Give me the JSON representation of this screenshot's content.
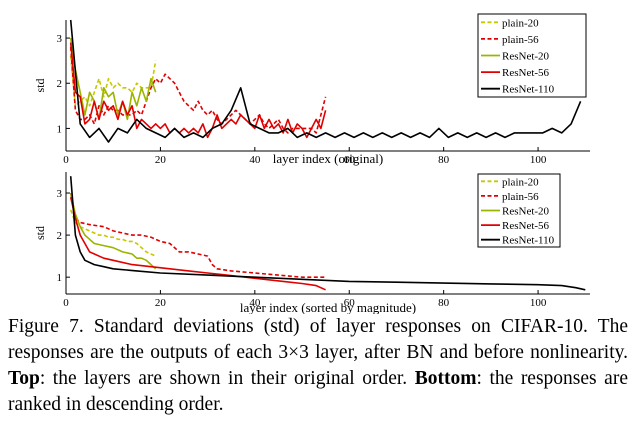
{
  "chart_data": [
    {
      "type": "line",
      "xlabel": "layer index (original)",
      "ylabel": "std",
      "xlim": [
        0,
        111
      ],
      "ylim": [
        0.5,
        3.4
      ],
      "xticks": [
        0,
        20,
        40,
        60,
        80,
        100
      ],
      "yticks": [
        1,
        2,
        3
      ],
      "legend_position": "top-right",
      "series": [
        {
          "name": "plain-20",
          "color": "#c8c800",
          "dash": "dashed",
          "x": [
            1,
            2,
            3,
            4,
            5,
            6,
            7,
            8,
            9,
            10,
            11,
            12,
            13,
            14,
            15,
            16,
            17,
            18,
            19
          ],
          "values": [
            2.6,
            1.5,
            1.6,
            1.7,
            1.5,
            1.8,
            2.1,
            1.7,
            2.1,
            1.9,
            2.0,
            1.9,
            1.9,
            1.8,
            2.0,
            1.9,
            1.9,
            1.9,
            2.5
          ]
        },
        {
          "name": "plain-56",
          "color": "#e00000",
          "dash": "dashed",
          "x": [
            1,
            2,
            3,
            4,
            5,
            6,
            7,
            8,
            9,
            10,
            11,
            12,
            13,
            14,
            15,
            16,
            17,
            18,
            19,
            20,
            21,
            22,
            23,
            24,
            25,
            26,
            27,
            28,
            29,
            30,
            31,
            32,
            33,
            34,
            35,
            36,
            37,
            38,
            39,
            40,
            41,
            42,
            43,
            44,
            45,
            46,
            47,
            48,
            49,
            50,
            51,
            52,
            53,
            54,
            55
          ],
          "values": [
            2.8,
            1.4,
            1.2,
            1.2,
            1.3,
            1.1,
            1.5,
            1.3,
            1.5,
            1.4,
            1.4,
            1.3,
            1.3,
            1.3,
            1.4,
            1.3,
            1.6,
            1.9,
            2.1,
            2.0,
            2.2,
            2.1,
            2.0,
            1.8,
            1.6,
            1.5,
            1.4,
            1.6,
            1.4,
            1.3,
            1.4,
            1.2,
            1.1,
            1.2,
            1.3,
            1.4,
            1.3,
            1.2,
            1.1,
            1.2,
            1.3,
            1.1,
            1.0,
            1.1,
            1.2,
            1.0,
            0.9,
            1.0,
            1.0,
            1.0,
            1.0,
            1.0,
            0.9,
            1.3,
            1.7
          ]
        },
        {
          "name": "ResNet-20",
          "color": "#9cb400",
          "dash": "solid",
          "x": [
            1,
            2,
            3,
            4,
            5,
            6,
            7,
            8,
            9,
            10,
            11,
            12,
            13,
            14,
            15,
            16,
            17,
            18,
            19
          ],
          "values": [
            3.0,
            2.3,
            1.8,
            1.3,
            1.8,
            1.6,
            1.2,
            1.9,
            1.7,
            1.8,
            1.3,
            1.6,
            1.2,
            1.8,
            1.5,
            1.9,
            1.6,
            2.1,
            1.8
          ]
        },
        {
          "name": "ResNet-56",
          "color": "#e00000",
          "dash": "solid",
          "x": [
            1,
            2,
            3,
            4,
            5,
            6,
            7,
            8,
            9,
            10,
            11,
            12,
            13,
            14,
            15,
            16,
            17,
            18,
            19,
            20,
            21,
            22,
            23,
            24,
            25,
            26,
            27,
            28,
            29,
            30,
            31,
            32,
            33,
            34,
            35,
            36,
            37,
            38,
            39,
            40,
            41,
            42,
            43,
            44,
            45,
            46,
            47,
            48,
            49,
            50,
            51,
            52,
            53,
            54,
            55
          ],
          "values": [
            2.9,
            1.8,
            1.7,
            1.1,
            1.2,
            1.6,
            1.2,
            1.6,
            1.4,
            1.5,
            1.2,
            1.6,
            1.3,
            1.5,
            1.0,
            1.2,
            1.1,
            1.0,
            1.1,
            1.0,
            1.1,
            0.9,
            1.0,
            0.9,
            1.0,
            0.9,
            1.0,
            0.9,
            1.1,
            0.8,
            1.0,
            1.3,
            1.0,
            1.1,
            1.2,
            1.1,
            1.3,
            1.2,
            1.1,
            1.0,
            1.3,
            1.0,
            1.2,
            1.0,
            1.1,
            0.9,
            1.2,
            0.9,
            1.1,
            1.0,
            0.8,
            1.0,
            1.2,
            1.0,
            1.4
          ]
        },
        {
          "name": "ResNet-110",
          "color": "#000000",
          "dash": "solid",
          "x": [
            1,
            3,
            5,
            7,
            9,
            11,
            13,
            15,
            17,
            19,
            21,
            23,
            25,
            27,
            29,
            31,
            33,
            35,
            37,
            39,
            41,
            43,
            45,
            47,
            49,
            51,
            53,
            55,
            57,
            59,
            61,
            63,
            65,
            67,
            69,
            71,
            73,
            75,
            77,
            79,
            81,
            83,
            85,
            87,
            89,
            91,
            93,
            95,
            97,
            99,
            101,
            103,
            105,
            107,
            109
          ],
          "values": [
            3.4,
            1.1,
            0.8,
            1.0,
            0.7,
            1.0,
            0.9,
            1.2,
            1.0,
            0.9,
            0.8,
            1.0,
            0.8,
            0.9,
            0.8,
            1.0,
            1.1,
            1.4,
            1.9,
            1.1,
            1.0,
            0.9,
            0.9,
            1.0,
            0.8,
            0.9,
            0.8,
            0.9,
            0.8,
            0.9,
            0.8,
            0.9,
            0.8,
            0.9,
            0.8,
            0.9,
            0.8,
            0.9,
            0.8,
            1.0,
            0.8,
            0.9,
            0.8,
            0.9,
            0.8,
            0.9,
            0.8,
            0.9,
            0.9,
            0.9,
            0.9,
            1.0,
            0.9,
            1.1,
            1.6
          ]
        }
      ]
    },
    {
      "type": "line",
      "xlabel": "layer index (sorted by magnitude)",
      "ylabel": "std",
      "xlim": [
        0,
        111
      ],
      "ylim": [
        0.6,
        3.5
      ],
      "xticks": [
        0,
        20,
        40,
        60,
        80,
        100
      ],
      "yticks": [
        1,
        2,
        3
      ],
      "legend_position": "top-right",
      "series": [
        {
          "name": "plain-20",
          "color": "#c8c800",
          "dash": "dashed",
          "x": [
            1,
            2,
            3,
            4,
            5,
            6,
            7,
            8,
            9,
            10,
            11,
            12,
            13,
            14,
            15,
            16,
            17,
            18,
            19
          ],
          "values": [
            2.6,
            2.3,
            2.2,
            2.15,
            2.1,
            2.05,
            2.0,
            2.0,
            1.95,
            1.95,
            1.9,
            1.9,
            1.85,
            1.85,
            1.8,
            1.7,
            1.6,
            1.55,
            1.5
          ]
        },
        {
          "name": "plain-56",
          "color": "#e00000",
          "dash": "dashed",
          "x": [
            1,
            2,
            3,
            5,
            8,
            10,
            12,
            14,
            16,
            18,
            20,
            22,
            24,
            26,
            28,
            30,
            31,
            32,
            35,
            40,
            45,
            50,
            55
          ],
          "values": [
            3.0,
            2.4,
            2.3,
            2.25,
            2.2,
            2.1,
            2.05,
            2.0,
            2.0,
            1.95,
            1.85,
            1.8,
            1.6,
            1.6,
            1.55,
            1.5,
            1.3,
            1.2,
            1.15,
            1.1,
            1.05,
            1.0,
            1.0
          ]
        },
        {
          "name": "ResNet-20",
          "color": "#9cb400",
          "dash": "solid",
          "x": [
            1,
            2,
            3,
            4,
            5,
            6,
            8,
            10,
            12,
            14,
            15,
            16,
            17,
            18,
            19
          ],
          "values": [
            3.0,
            2.5,
            2.2,
            2.0,
            1.9,
            1.8,
            1.75,
            1.7,
            1.6,
            1.55,
            1.45,
            1.45,
            1.4,
            1.3,
            1.2
          ]
        },
        {
          "name": "ResNet-56",
          "color": "#e00000",
          "dash": "solid",
          "x": [
            1,
            2,
            3,
            5,
            8,
            10,
            14,
            18,
            22,
            26,
            30,
            34,
            38,
            42,
            46,
            50,
            53,
            55
          ],
          "values": [
            2.9,
            2.4,
            2.0,
            1.6,
            1.45,
            1.4,
            1.3,
            1.25,
            1.2,
            1.15,
            1.1,
            1.05,
            1.0,
            0.95,
            0.9,
            0.85,
            0.8,
            0.7
          ]
        },
        {
          "name": "ResNet-110",
          "color": "#000000",
          "dash": "solid",
          "x": [
            1,
            2,
            3,
            4,
            6,
            8,
            10,
            15,
            20,
            30,
            40,
            50,
            60,
            70,
            80,
            90,
            100,
            105,
            108,
            110
          ],
          "values": [
            3.4,
            2.0,
            1.6,
            1.4,
            1.3,
            1.25,
            1.2,
            1.15,
            1.1,
            1.05,
            1.0,
            0.95,
            0.9,
            0.88,
            0.86,
            0.84,
            0.82,
            0.8,
            0.75,
            0.7
          ]
        }
      ]
    }
  ],
  "caption": {
    "figure_label": "Figure 7.",
    "text_1": " Standard deviations (std) of layer responses on CIFAR-10. The responses are the outputs of each 3×3 layer, after BN and before nonlinearity. ",
    "top_label": "Top",
    "text_2": ": the layers are shown in their original order. ",
    "bottom_label": "Bottom",
    "text_3": ": the responses are ranked in descending order."
  }
}
